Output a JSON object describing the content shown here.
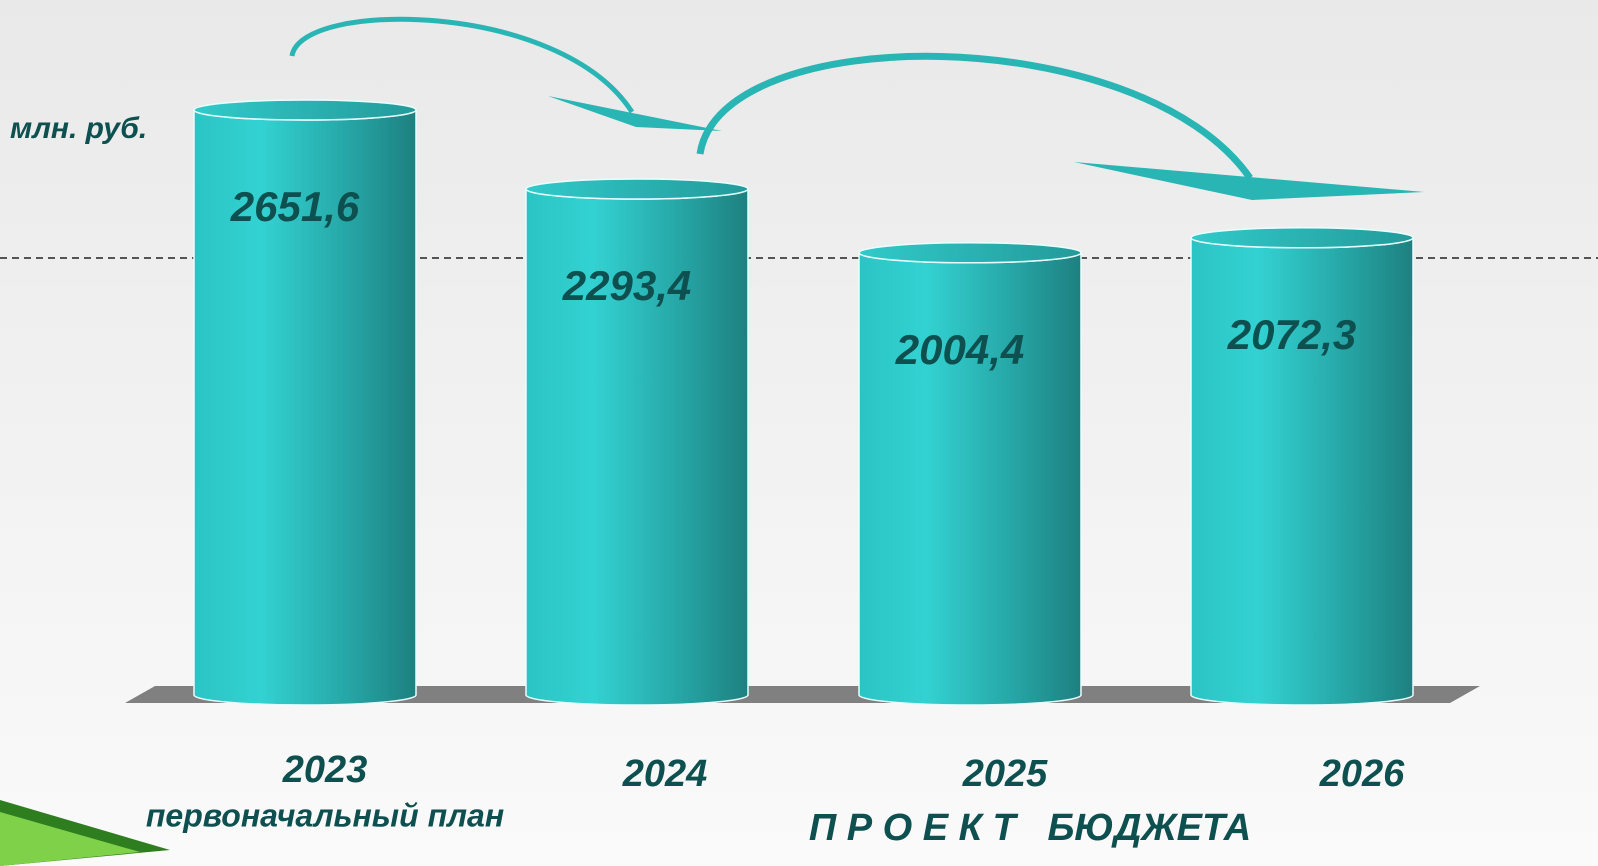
{
  "chart_data": {
    "type": "bar",
    "ylabel": "млн. руб.",
    "categories": [
      "2023",
      "2024",
      "2025",
      "2026"
    ],
    "values": [
      2651.6,
      2293.4,
      2004.4,
      2072.3
    ],
    "value_labels": [
      "2651,6",
      "2293,4",
      "2004,4",
      "2072,3"
    ],
    "color": "#2ccaca",
    "annotations": [
      "первоначальный план",
      "П Р О Е К Т   БЮДЖЕТА"
    ]
  }
}
